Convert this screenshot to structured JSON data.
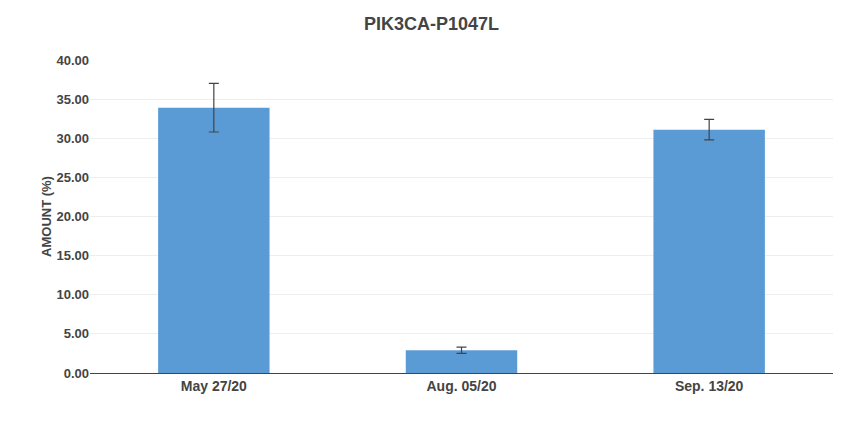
{
  "chart_data": {
    "type": "bar",
    "title": "PIK3CA-P1047L",
    "categories": [
      "May 27/20",
      "Aug. 05/20",
      "Sep. 13/20"
    ],
    "values": [
      33.9,
      2.9,
      31.1
    ],
    "errors": [
      3.1,
      0.4,
      1.3
    ],
    "color": "#5b9bd5",
    "ylabel": "AMOUNT (%)",
    "ylim": [
      0,
      40
    ],
    "yticks": [
      {
        "value": 0,
        "label": "0.00"
      },
      {
        "value": 5,
        "label": "5.00"
      },
      {
        "value": 10,
        "label": "10.00"
      },
      {
        "value": 15,
        "label": "15.00"
      },
      {
        "value": 20,
        "label": "20.00"
      },
      {
        "value": 25,
        "label": "25.00"
      },
      {
        "value": 30,
        "label": "30.00"
      },
      {
        "value": 35,
        "label": "35.00"
      },
      {
        "value": 40,
        "label": "40.00"
      }
    ],
    "grid": true
  }
}
